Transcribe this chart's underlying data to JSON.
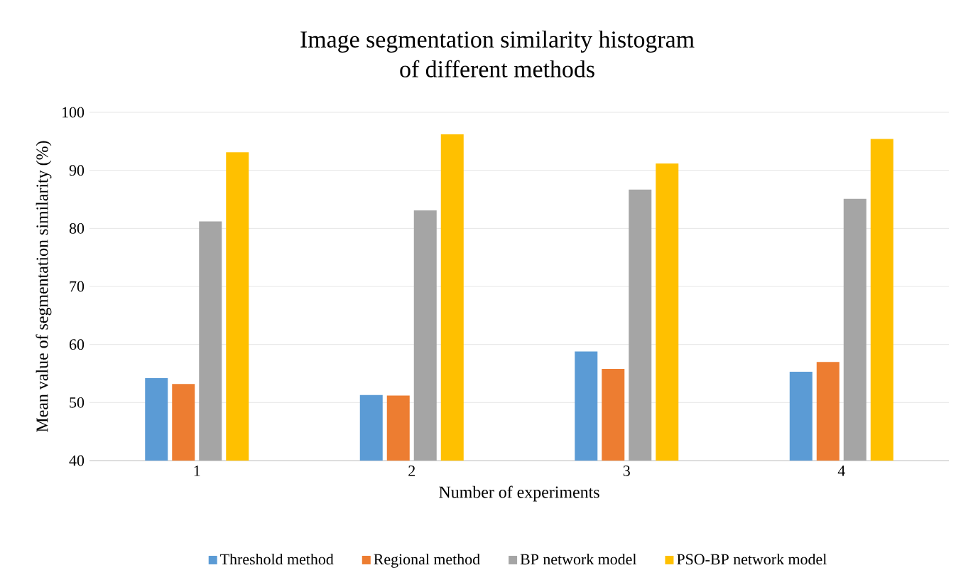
{
  "chart_data": {
    "type": "bar",
    "title": "Image segmentation similarity histogram\nof different methods",
    "xlabel": "Number of experiments",
    "ylabel": "Mean value of segmentation similarity (%)",
    "categories": [
      "1",
      "2",
      "3",
      "4"
    ],
    "series": [
      {
        "name": "Threshold method",
        "color": "#5b9bd5",
        "values": [
          54.2,
          51.3,
          58.8,
          55.3
        ]
      },
      {
        "name": "Regional method",
        "color": "#ed7d31",
        "values": [
          53.2,
          51.2,
          55.8,
          57.0
        ]
      },
      {
        "name": "BP network model",
        "color": "#a5a5a5",
        "values": [
          81.2,
          83.1,
          86.7,
          85.1
        ]
      },
      {
        "name": "PSO-BP network model",
        "color": "#ffc000",
        "values": [
          93.1,
          96.2,
          91.2,
          95.4
        ]
      }
    ],
    "ylim": [
      40,
      100
    ],
    "yticks": [
      40,
      50,
      60,
      70,
      80,
      90,
      100
    ],
    "grid": "y",
    "legend": "bottom"
  }
}
